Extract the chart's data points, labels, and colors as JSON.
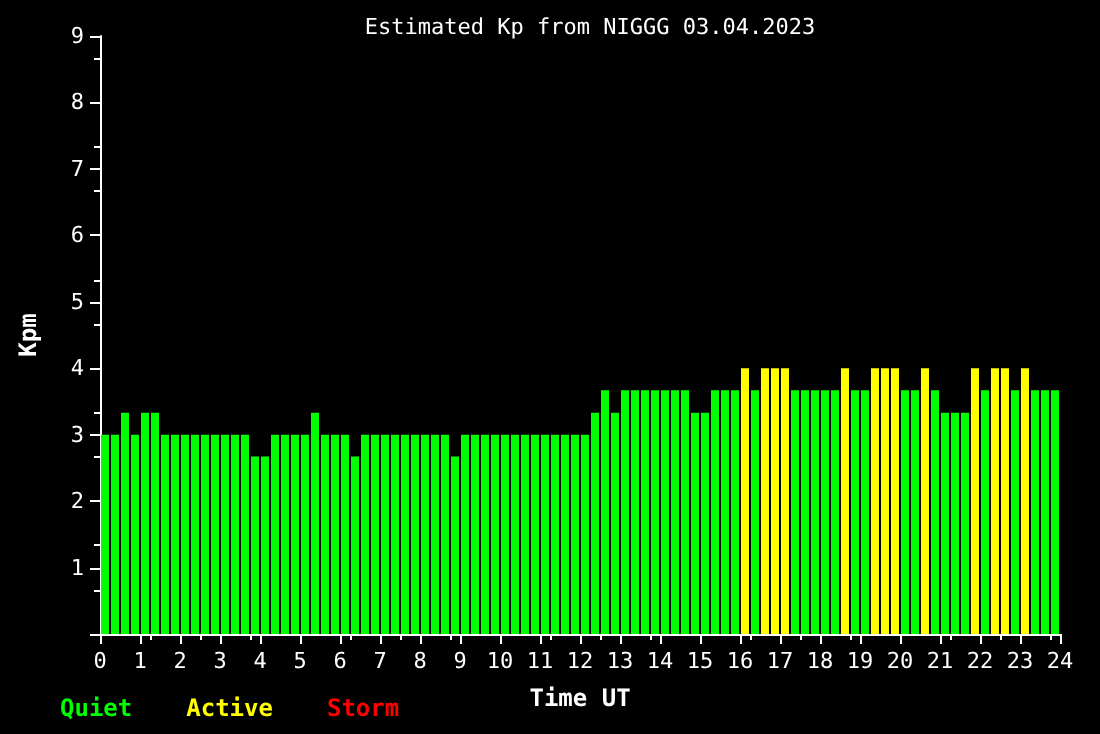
{
  "chart_data": {
    "type": "bar",
    "title": "Estimated Kp from NIGGG 03.04.2023",
    "xlabel": "Time UT",
    "ylabel": "Kpm",
    "x": [
      0.125,
      0.375,
      0.625,
      0.875,
      1.125,
      1.375,
      1.625,
      1.875,
      2.125,
      2.375,
      2.625,
      2.875,
      3.125,
      3.375,
      3.625,
      3.875,
      4.125,
      4.375,
      4.625,
      4.875,
      5.125,
      5.375,
      5.625,
      5.875,
      6.125,
      6.375,
      6.625,
      6.875,
      7.125,
      7.375,
      7.625,
      7.875,
      8.125,
      8.375,
      8.625,
      8.875,
      9.125,
      9.375,
      9.625,
      9.875,
      10.125,
      10.375,
      10.625,
      10.875,
      11.125,
      11.375,
      11.625,
      11.875,
      12.125,
      12.375,
      12.625,
      12.875,
      13.125,
      13.375,
      13.625,
      13.875,
      14.125,
      14.375,
      14.625,
      14.875,
      15.125,
      15.375,
      15.625,
      15.875,
      16.125,
      16.375,
      16.625,
      16.875,
      17.125,
      17.375,
      17.625,
      17.875,
      18.125,
      18.375,
      18.625,
      18.875,
      19.125,
      19.375,
      19.625,
      19.875,
      20.125,
      20.375,
      20.625,
      20.875,
      21.125,
      21.375,
      21.625,
      21.875,
      22.125,
      22.375,
      22.625,
      22.875,
      23.125,
      23.375,
      23.625,
      23.875
    ],
    "series": [
      {
        "name": "Quiet",
        "color": "#00ff00",
        "values": [
          3,
          3,
          3.33,
          3,
          3.33,
          3.33,
          3,
          3,
          3,
          3,
          3,
          3,
          3,
          3,
          3,
          2.67,
          2.67,
          3,
          3,
          3,
          3,
          3.33,
          3,
          3,
          3,
          2.67,
          3,
          3,
          3,
          3,
          3,
          3,
          3,
          3,
          3,
          2.67,
          3,
          3,
          3,
          3,
          3,
          3,
          3,
          3,
          3,
          3,
          3,
          3,
          3,
          3.33,
          3.67,
          3.33,
          3.67,
          3.67,
          3.67,
          3.67,
          3.67,
          3.67,
          3.67,
          3.33,
          3.33,
          3.67,
          3.67,
          3.67,
          null,
          3.67,
          null,
          null,
          null,
          3.67,
          3.67,
          3.67,
          3.67,
          3.67,
          null,
          3.67,
          3.67,
          null,
          null,
          null,
          3.67,
          3.67,
          null,
          3.67,
          3.33,
          3.33,
          3.33,
          null,
          3.67,
          null,
          null,
          3.67,
          null,
          3.67,
          3.67,
          3.67
        ]
      },
      {
        "name": "Active",
        "color": "#ffff00",
        "values": [
          null,
          null,
          null,
          null,
          null,
          null,
          null,
          null,
          null,
          null,
          null,
          null,
          null,
          null,
          null,
          null,
          null,
          null,
          null,
          null,
          null,
          null,
          null,
          null,
          null,
          null,
          null,
          null,
          null,
          null,
          null,
          null,
          null,
          null,
          null,
          null,
          null,
          null,
          null,
          null,
          null,
          null,
          null,
          null,
          null,
          null,
          null,
          null,
          null,
          null,
          null,
          null,
          null,
          null,
          null,
          null,
          null,
          null,
          null,
          null,
          null,
          null,
          null,
          null,
          4,
          null,
          4,
          4,
          4,
          null,
          null,
          null,
          null,
          null,
          4,
          null,
          null,
          4,
          4,
          4,
          null,
          null,
          4,
          null,
          null,
          null,
          null,
          4,
          null,
          4,
          4,
          null,
          4,
          null,
          null,
          null
        ]
      },
      {
        "name": "Storm",
        "color": "#ff0000",
        "values": [
          null,
          null,
          null,
          null,
          null,
          null,
          null,
          null,
          null,
          null,
          null,
          null,
          null,
          null,
          null,
          null,
          null,
          null,
          null,
          null,
          null,
          null,
          null,
          null,
          null,
          null,
          null,
          null,
          null,
          null,
          null,
          null,
          null,
          null,
          null,
          null,
          null,
          null,
          null,
          null,
          null,
          null,
          null,
          null,
          null,
          null,
          null,
          null,
          null,
          null,
          null,
          null,
          null,
          null,
          null,
          null,
          null,
          null,
          null,
          null,
          null,
          null,
          null,
          null,
          null,
          null,
          null,
          null,
          null,
          null,
          null,
          null,
          null,
          null,
          null,
          null,
          null,
          null,
          null,
          null,
          null,
          null,
          null,
          null,
          null,
          null,
          null,
          null,
          null,
          null,
          null,
          null,
          null,
          null,
          null,
          null
        ]
      }
    ],
    "xlim": [
      0,
      24
    ],
    "xticks": [
      0,
      1,
      2,
      3,
      4,
      5,
      6,
      7,
      8,
      9,
      10,
      11,
      12,
      13,
      14,
      15,
      16,
      17,
      18,
      19,
      20,
      21,
      22,
      23,
      24
    ],
    "ylim": [
      0,
      9
    ],
    "yticks": [
      {
        "value": 0,
        "label": null
      },
      1,
      2,
      3,
      4,
      5,
      6,
      7,
      8,
      9
    ],
    "grid": false,
    "legend": "bottom left"
  }
}
